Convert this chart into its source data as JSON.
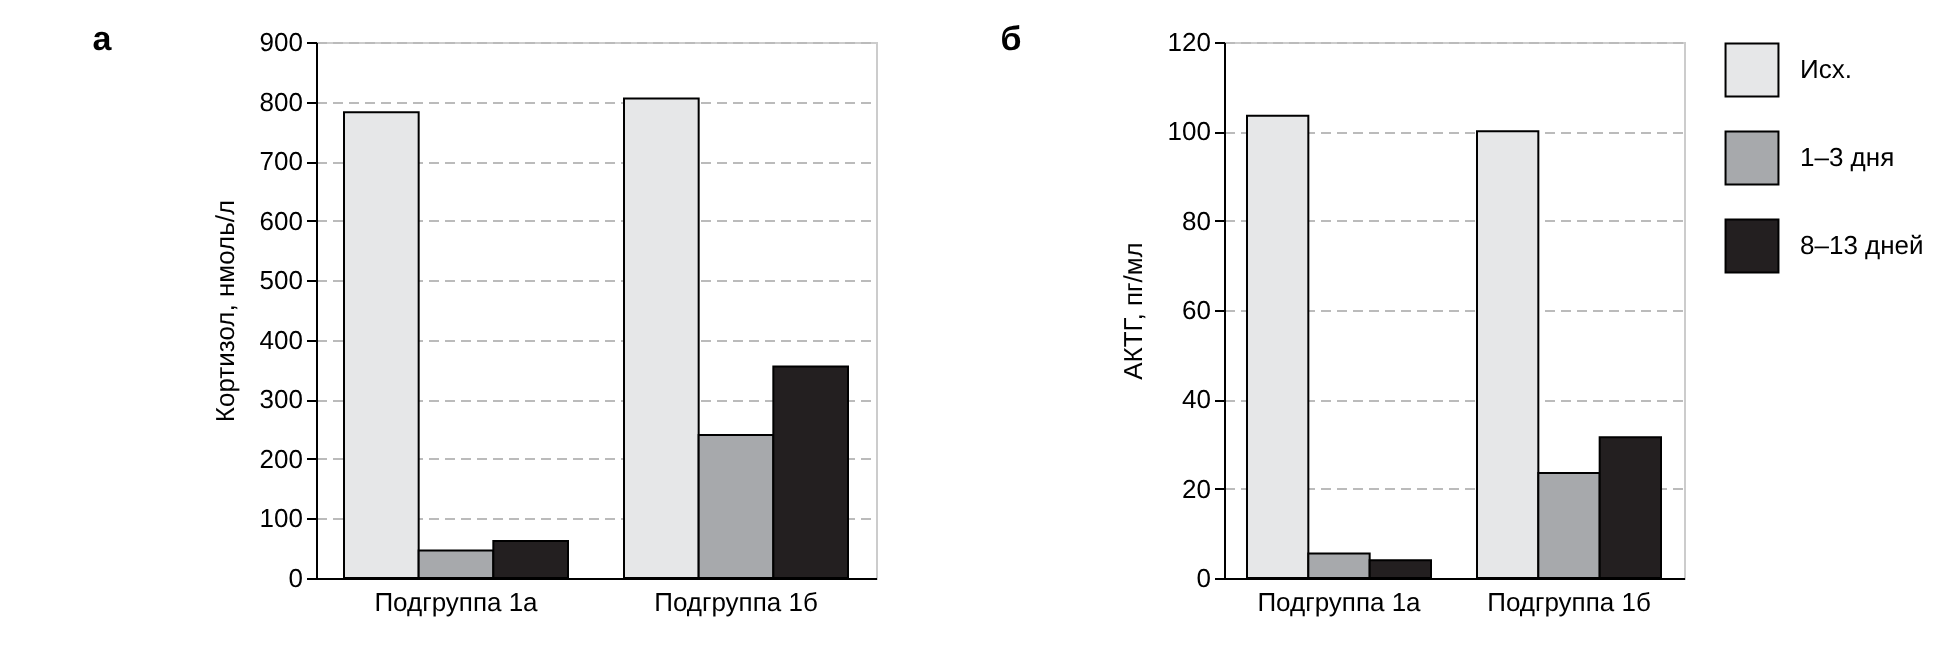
{
  "chart_data": [
    {
      "type": "bar",
      "title": "а",
      "ylabel": "Кортизол, нмоль/л",
      "categories": [
        "Подгруппа 1а",
        "Подгруппа 1б"
      ],
      "series": [
        {
          "color": "#e6e7e8",
          "values": [
            782,
            805
          ]
        },
        {
          "color": "#a7a9ac",
          "values": [
            46,
            240
          ]
        },
        {
          "color": "#231f20",
          "values": [
            62,
            355
          ]
        }
      ],
      "ylim": [
        0,
        900
      ],
      "yticks": [
        0,
        100,
        200,
        300,
        400,
        500,
        600,
        700,
        800,
        900
      ],
      "grid": "y",
      "legend": false
    },
    {
      "type": "bar",
      "title": "б",
      "ylabel": "АКТГ, пг/мл",
      "categories": [
        "Подгруппа 1а",
        "Подгруппа 1б"
      ],
      "series": [
        {
          "name": "Исх.",
          "color": "#e6e7e8",
          "values": [
            103.5,
            100
          ]
        },
        {
          "name": "1–3 дня",
          "color": "#a7a9ac",
          "values": [
            5.5,
            23.5
          ]
        },
        {
          "name": "8–13 дней",
          "color": "#231f20",
          "values": [
            4,
            31.5
          ]
        }
      ],
      "ylim": [
        0,
        120
      ],
      "yticks": [
        0,
        20,
        40,
        60,
        80,
        100,
        120
      ],
      "grid": "y",
      "legend": "right"
    }
  ]
}
